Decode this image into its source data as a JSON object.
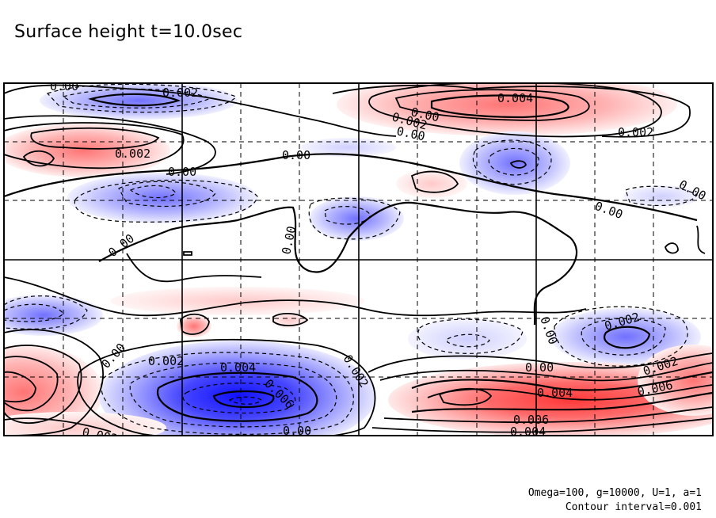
{
  "chart_data": {
    "type": "contour",
    "title": "Surface height t=10.0sec",
    "variable": "Surface height",
    "time": "t=10.0sec",
    "contour_interval": 0.001,
    "parameters": {
      "Omega": 100,
      "g": 10000,
      "U": 1,
      "a": 1
    },
    "parameters_text": "Omega=100, g=10000, U=1, a=1",
    "contour_interval_text": "Contour interval=0.001",
    "grid": true,
    "colors": {
      "positive_fill": "#ff5050",
      "negative_fill": "#3030ff",
      "zero_fill": "#ffffff",
      "frame": "#000000"
    },
    "contour_labels": [
      {
        "id": "lbl-1",
        "text": "0.00"
      },
      {
        "id": "lbl-2",
        "text": "0.002"
      },
      {
        "id": "lbl-3",
        "text": "0.004"
      },
      {
        "id": "lbl-4",
        "text": "0.002"
      },
      {
        "id": "lbl-5",
        "text": "0.00"
      },
      {
        "id": "lbl-6",
        "text": "0.002"
      },
      {
        "id": "lbl-7",
        "text": "0.002"
      },
      {
        "id": "lbl-8",
        "text": "0.00"
      },
      {
        "id": "lbl-9",
        "text": "0.00"
      },
      {
        "id": "lbl-10",
        "text": "0.00"
      },
      {
        "id": "lbl-11",
        "text": "0.00"
      },
      {
        "id": "lbl-12",
        "text": "0.00"
      },
      {
        "id": "lbl-13",
        "text": "0.00"
      },
      {
        "id": "lbl-14",
        "text": "0.00"
      },
      {
        "id": "lbl-15",
        "text": "0.002"
      },
      {
        "id": "lbl-16",
        "text": "0.00"
      },
      {
        "id": "lbl-17",
        "text": "0.00"
      },
      {
        "id": "lbl-18",
        "text": "0.002"
      },
      {
        "id": "lbl-19",
        "text": "0.004"
      },
      {
        "id": "lbl-20",
        "text": "0.002"
      },
      {
        "id": "lbl-21",
        "text": "0.006"
      },
      {
        "id": "lbl-22",
        "text": "0.00"
      },
      {
        "id": "lbl-23",
        "text": "0.002"
      },
      {
        "id": "lbl-24",
        "text": "0.004"
      },
      {
        "id": "lbl-25",
        "text": "0.006"
      },
      {
        "id": "lbl-26",
        "text": "0.006"
      },
      {
        "id": "lbl-27",
        "text": "0.004"
      },
      {
        "id": "lbl-28",
        "text": "0.00"
      },
      {
        "id": "lbl-29",
        "text": "0.002"
      }
    ],
    "features": [
      {
        "id": "neg-top-left",
        "sign": "negative",
        "peak": -0.003
      },
      {
        "id": "pos-top-right",
        "sign": "positive",
        "peak": 0.005
      },
      {
        "id": "pos-left-upper",
        "sign": "positive",
        "peak": 0.003
      },
      {
        "id": "neg-center-upper",
        "sign": "negative",
        "peak": -0.002
      },
      {
        "id": "neg-right-upper",
        "sign": "negative",
        "peak": -0.003
      },
      {
        "id": "neg-center-left",
        "sign": "negative",
        "peak": -0.002
      },
      {
        "id": "neg-center",
        "sign": "negative",
        "peak": -0.002
      },
      {
        "id": "pos-center-small",
        "sign": "positive",
        "peak": 0.001
      },
      {
        "id": "neg-bottom-left-big",
        "sign": "negative",
        "peak": -0.008
      },
      {
        "id": "pos-bottom-right",
        "sign": "positive",
        "peak": 0.007
      },
      {
        "id": "neg-right-lower",
        "sign": "negative",
        "peak": -0.003
      },
      {
        "id": "pos-left-bottom",
        "sign": "positive",
        "peak": 0.004
      },
      {
        "id": "neg-left-middle",
        "sign": "negative",
        "peak": -0.002
      },
      {
        "id": "neg-center-lower",
        "sign": "negative",
        "peak": -0.002
      }
    ]
  }
}
